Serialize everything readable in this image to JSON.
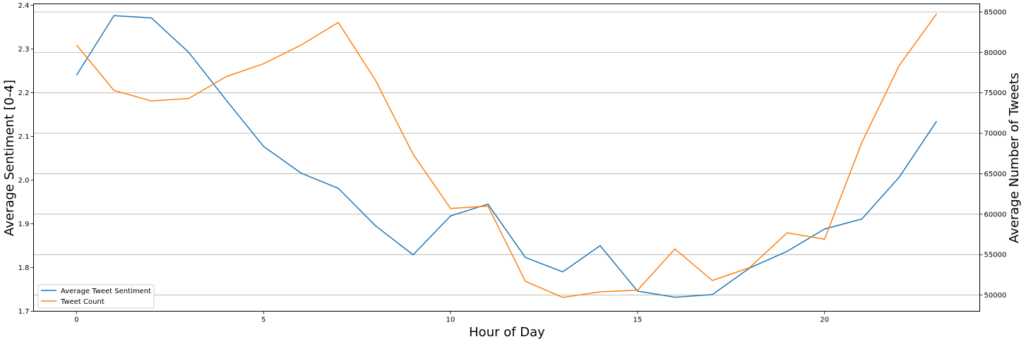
{
  "chart_data": {
    "type": "line",
    "xlabel": "Hour of Day",
    "ylabel_left": "Average Sentiment [0-4]",
    "ylabel_right": "Average Number of Tweets",
    "xlim": [
      -1.15,
      24.15
    ],
    "ylim_left": [
      1.7,
      2.403
    ],
    "ylim_right": [
      48000,
      86000
    ],
    "x_ticks": [
      0,
      5,
      10,
      15,
      20
    ],
    "y_left_ticks": [
      "1.7",
      "1.8",
      "1.9",
      "2.0",
      "2.1",
      "2.2",
      "2.3",
      "2.4"
    ],
    "y_right_ticks": [
      "50000",
      "55000",
      "60000",
      "65000",
      "70000",
      "75000",
      "80000",
      "85000"
    ],
    "grid": "horizontal (right axis)",
    "legend_position": "lower-left",
    "x": [
      0,
      1,
      2,
      3,
      4,
      5,
      6,
      7,
      8,
      9,
      10,
      11,
      12,
      13,
      14,
      15,
      16,
      17,
      18,
      19,
      20,
      21,
      22,
      23
    ],
    "series": [
      {
        "name": "Average Tweet Sentiment",
        "axis": "left",
        "color": "#1f77b4",
        "values": [
          2.24,
          2.376,
          2.371,
          2.292,
          2.183,
          2.077,
          2.016,
          1.981,
          1.895,
          1.829,
          1.918,
          1.945,
          1.823,
          1.79,
          1.85,
          1.746,
          1.732,
          1.738,
          1.799,
          1.837,
          1.888,
          1.911,
          2.007,
          2.135
        ]
      },
      {
        "name": "Tweet Count",
        "axis": "right",
        "color": "#ff7f0e",
        "values": [
          80900,
          75300,
          74000,
          74300,
          77000,
          78600,
          80900,
          83700,
          76500,
          67400,
          60700,
          61000,
          51700,
          49700,
          50400,
          50600,
          55700,
          51800,
          53400,
          57700,
          56900,
          68900,
          78400,
          84800
        ]
      }
    ]
  }
}
